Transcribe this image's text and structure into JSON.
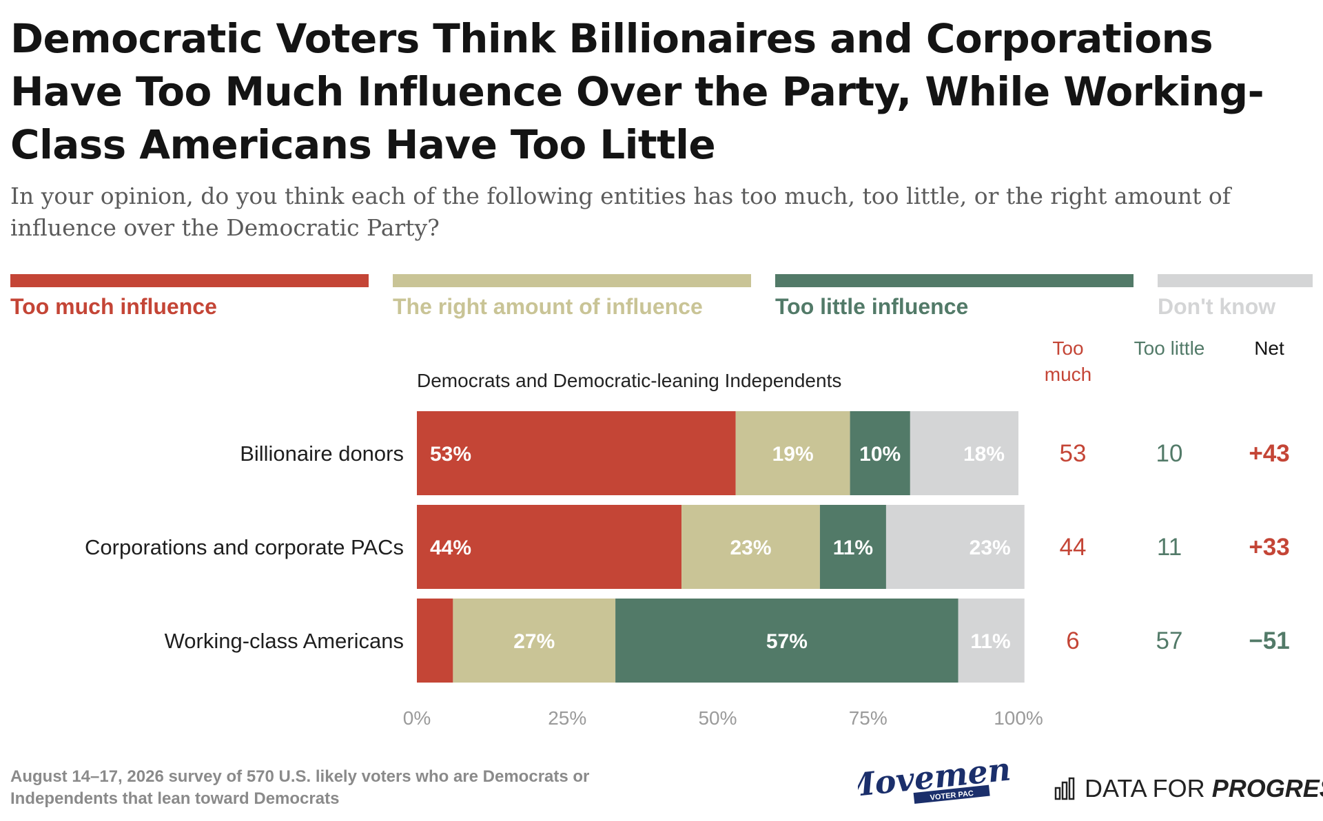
{
  "title": "Democratic Voters Think Billionaires and Corporations Have Too Much Influence Over the Party, While Working-Class Americans Have Too Little",
  "subtitle": "In your opinion, do you think each of the following entities has too much, too little, or the right amount of influence over the Democratic Party?",
  "legend": [
    {
      "label": "Too much influence",
      "color": "#c44536"
    },
    {
      "label": "The right amount of influence",
      "color": "#c9c496"
    },
    {
      "label": "Too little influence",
      "color": "#527a68"
    },
    {
      "label": "Don't know",
      "color": "#d4d5d6"
    }
  ],
  "footer": {
    "note": "August 14–17, 2026 survey of 570 U.S. likely voters who are Democrats or Independents that lean toward Democrats",
    "logo_movement_text": "Movement",
    "logo_movement_sub": "VOTER PAC",
    "dfp_text_regular": "DATA FOR ",
    "dfp_text_bold": "PROGRESS"
  },
  "chart_data": {
    "type": "bar",
    "orientation": "horizontal",
    "stacked": true,
    "group_label": "Democrats and Democratic-leaning Independents",
    "categories": [
      "Billionaire donors",
      "Corporations and corporate PACs",
      "Working-class Americans"
    ],
    "series": [
      {
        "name": "Too much influence",
        "color": "#c44536",
        "values": [
          53,
          44,
          6
        ]
      },
      {
        "name": "The right amount of influence",
        "color": "#c9c496",
        "values": [
          19,
          23,
          27
        ]
      },
      {
        "name": "Too little influence",
        "color": "#527a68",
        "values": [
          10,
          11,
          57
        ]
      },
      {
        "name": "Don't know",
        "color": "#d4d5d6",
        "values": [
          18,
          23,
          11
        ]
      }
    ],
    "bar_labels": [
      [
        "53%",
        "19%",
        "10%",
        "18%"
      ],
      [
        "44%",
        "23%",
        "11%",
        "23%"
      ],
      [
        "",
        "27%",
        "57%",
        "11%"
      ]
    ],
    "x_ticks": [
      "0%",
      "25%",
      "50%",
      "75%",
      "100%"
    ],
    "xlim": [
      0,
      100
    ],
    "summary_columns": {
      "headers": [
        {
          "label": "Too much",
          "color": "#c44536"
        },
        {
          "label": "Too little",
          "color": "#527a68"
        },
        {
          "label": "Net",
          "color": "#141414"
        }
      ],
      "rows": [
        {
          "too_much": "53",
          "too_little": "10",
          "net": "+43",
          "net_color": "#c44536"
        },
        {
          "too_much": "44",
          "too_little": "11",
          "net": "+33",
          "net_color": "#c44536"
        },
        {
          "too_much": "6",
          "too_little": "57",
          "net": "−51",
          "net_color": "#527a68"
        }
      ]
    }
  }
}
